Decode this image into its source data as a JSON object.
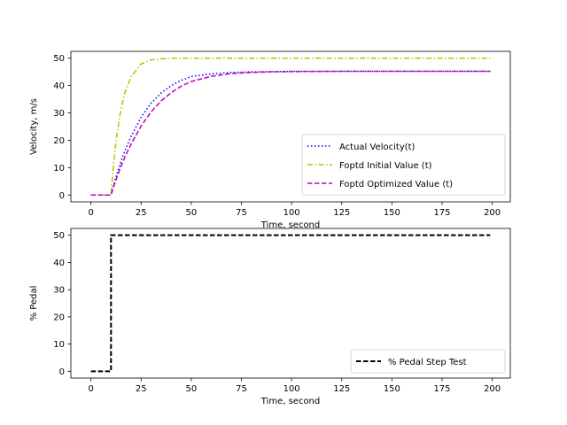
{
  "chart_data": [
    {
      "type": "line",
      "xlabel": "Time, second",
      "ylabel": "Velocity, m/s",
      "xlim": [
        -10,
        209
      ],
      "ylim": [
        -2.5,
        52.5
      ],
      "xticks": [
        "0",
        "25",
        "50",
        "75",
        "100",
        "125",
        "150",
        "175",
        "200"
      ],
      "xtick_values": [
        0,
        25,
        50,
        75,
        100,
        125,
        150,
        175,
        200
      ],
      "yticks": [
        "0",
        "10",
        "20",
        "30",
        "40",
        "50"
      ],
      "ytick_values": [
        0,
        10,
        20,
        30,
        40,
        50
      ],
      "grid": false,
      "legend_position": "lower-right",
      "x": [
        0,
        5,
        9,
        10,
        11,
        12,
        13,
        15,
        17,
        20,
        25,
        30,
        35,
        40,
        45,
        50,
        60,
        70,
        80,
        90,
        100,
        125,
        150,
        175,
        199
      ],
      "series": [
        {
          "name": "Actual Velocity(t)",
          "color": "#0000ff",
          "style": "dotted",
          "values": [
            0,
            0,
            0,
            0,
            2.7,
            5.4,
            7.8,
            12.3,
            16.3,
            21.4,
            28.4,
            33.6,
            37.3,
            40.0,
            41.9,
            43.3,
            44.3,
            44.8,
            45.0,
            45.1,
            45.2,
            45.2,
            45.2,
            45.2,
            45.2
          ]
        },
        {
          "name": "Foptd Initial Value (t)",
          "color": "#bfbf00",
          "style": "dashdot",
          "values": [
            0,
            0,
            0,
            0,
            9.1,
            16.5,
            22.5,
            31.6,
            37.6,
            43.2,
            47.9,
            49.4,
            49.8,
            49.95,
            50,
            50,
            50,
            50,
            50,
            50,
            50,
            50,
            50,
            50,
            50
          ]
        },
        {
          "name": "Foptd Optimized Value (t)",
          "color": "#bf00bf",
          "style": "dashed",
          "values": [
            0,
            0,
            0,
            0,
            2.3,
            4.5,
            6.6,
            10.5,
            14.0,
            18.6,
            25.2,
            30.4,
            34.4,
            37.4,
            39.8,
            41.5,
            43.4,
            44.4,
            44.8,
            45.0,
            45.1,
            45.2,
            45.2,
            45.2,
            45.2
          ]
        }
      ]
    },
    {
      "type": "line",
      "xlabel": "Time, second",
      "ylabel": "% Pedal",
      "xlim": [
        -10,
        209
      ],
      "ylim": [
        -2.5,
        52.5
      ],
      "xticks": [
        "0",
        "25",
        "50",
        "75",
        "100",
        "125",
        "150",
        "175",
        "200"
      ],
      "xtick_values": [
        0,
        25,
        50,
        75,
        100,
        125,
        150,
        175,
        200
      ],
      "yticks": [
        "0",
        "10",
        "20",
        "30",
        "40",
        "50"
      ],
      "ytick_values": [
        0,
        10,
        20,
        30,
        40,
        50
      ],
      "grid": false,
      "legend_position": "lower-right",
      "x": [
        0,
        9,
        9,
        10,
        10,
        199
      ],
      "series": [
        {
          "name": "% Pedal Step Test",
          "color": "#000000",
          "style": "dashed",
          "values": [
            0,
            0,
            0,
            0,
            50,
            50
          ]
        }
      ]
    }
  ]
}
